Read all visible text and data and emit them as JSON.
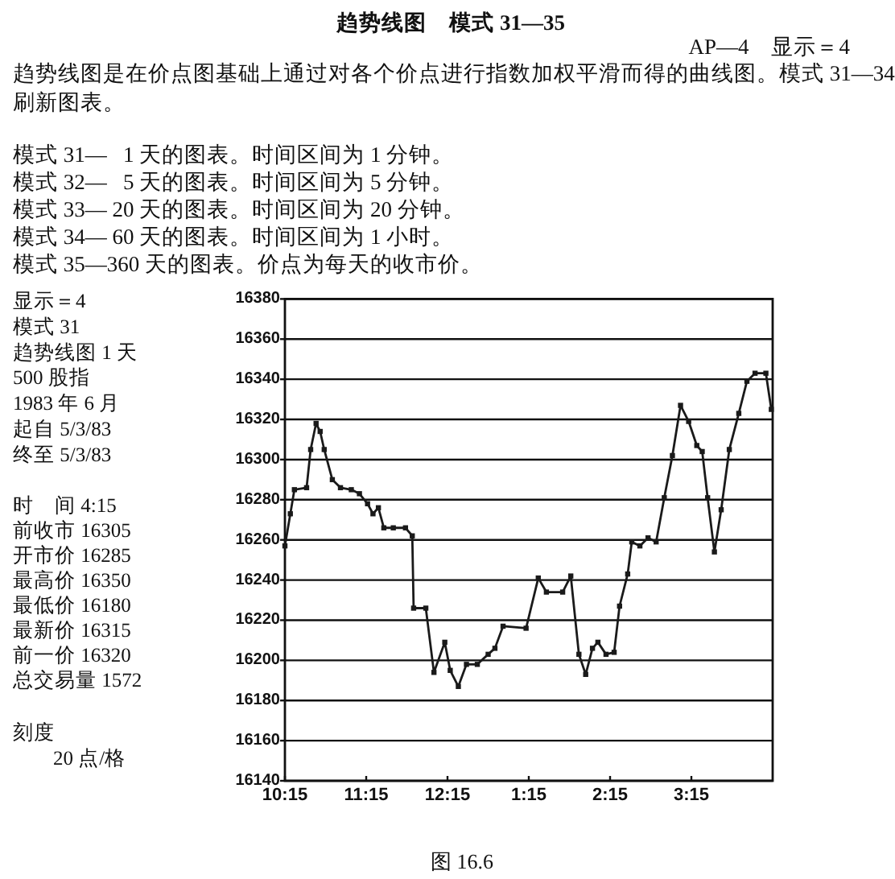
{
  "chart_data": {
    "type": "line",
    "title": "趋势线图　模式 31—35",
    "subtitle": "AP—4　显示＝4",
    "x": [
      "1983-05-03T10:15",
      "1983-05-03T10:19",
      "1983-05-03T10:22",
      "1983-05-03T10:31",
      "1983-05-03T10:34",
      "1983-05-03T10:38",
      "1983-05-03T10:41",
      "1983-05-03T10:44",
      "1983-05-03T10:50",
      "1983-05-03T10:56",
      "1983-05-03T11:04",
      "1983-05-03T11:10",
      "1983-05-03T11:16",
      "1983-05-03T11:20",
      "1983-05-03T11:24",
      "1983-05-03T11:28",
      "1983-05-03T11:35",
      "1983-05-03T11:44",
      "1983-05-03T11:49",
      "1983-05-03T11:50",
      "1983-05-03T11:59",
      "1983-05-03T12:05",
      "1983-05-03T12:13",
      "1983-05-03T12:17",
      "1983-05-03T12:23",
      "1983-05-03T12:29",
      "1983-05-03T12:37",
      "1983-05-03T12:45",
      "1983-05-03T12:50",
      "1983-05-03T12:56",
      "1983-05-03T13:13",
      "1983-05-03T13:22",
      "1983-05-03T13:28",
      "1983-05-03T13:40",
      "1983-05-03T13:46",
      "1983-05-03T13:52",
      "1983-05-03T13:57",
      "1983-05-03T14:02",
      "1983-05-03T14:06",
      "1983-05-03T14:12",
      "1983-05-03T14:18",
      "1983-05-03T14:22",
      "1983-05-03T14:28",
      "1983-05-03T14:31",
      "1983-05-03T14:37",
      "1983-05-03T14:43",
      "1983-05-03T14:49",
      "1983-05-03T14:55",
      "1983-05-03T15:01",
      "1983-05-03T15:07",
      "1983-05-03T15:13",
      "1983-05-03T15:19",
      "1983-05-03T15:23",
      "1983-05-03T15:27",
      "1983-05-03T15:32",
      "1983-05-03T15:37",
      "1983-05-03T15:43",
      "1983-05-03T15:50",
      "1983-05-03T15:56",
      "1983-05-03T16:02",
      "1983-05-03T16:10",
      "1983-05-03T16:14"
    ],
    "series": [
      {
        "color": "#1a1a1a",
        "values": [
          16257,
          16273,
          16285,
          16286,
          16305,
          16318,
          16314,
          16305,
          16290,
          16286,
          16285,
          16283,
          16278,
          16273,
          16276,
          16266,
          16266,
          16266,
          16262,
          16226,
          16226,
          16194,
          16209,
          16195,
          16187,
          16198,
          16198,
          16203,
          16206,
          16217,
          16216,
          16241,
          16234,
          16234,
          16242,
          16203,
          16193,
          16206,
          16209,
          16203,
          16204,
          16227,
          16243,
          16259,
          16257,
          16261,
          16259,
          16281,
          16302,
          16327,
          16319,
          16307,
          16304,
          16281,
          16254,
          16275,
          16305,
          16323,
          16339,
          16343,
          16343,
          16325
        ]
      }
    ],
    "xlim": [
      "1983-05-03T10:15",
      "1983-05-03T16:15"
    ],
    "xticks": [
      {
        "value": "1983-05-03T10:15",
        "label": "10:15"
      },
      {
        "value": "1983-05-03T11:15",
        "label": "11:15"
      },
      {
        "value": "1983-05-03T12:15",
        "label": "12:15"
      },
      {
        "value": "1983-05-03T13:15",
        "label": "1:15"
      },
      {
        "value": "1983-05-03T14:15",
        "label": "2:15"
      },
      {
        "value": "1983-05-03T15:15",
        "label": "3:15"
      }
    ],
    "ylim": [
      16140,
      16380
    ],
    "yticks": [
      16140,
      16160,
      16180,
      16200,
      16220,
      16240,
      16260,
      16280,
      16300,
      16320,
      16340,
      16360,
      16380
    ],
    "grid": "y",
    "marker": "square",
    "line_style": "solid",
    "annotations": [
      "趋势线图是在价点图基础上通过对各个价点进行指数加权平滑而得的曲线图。模式 31—34 刷新图表。",
      "模式 31—   1 天的图表。时间区间为 1 分钟。",
      "模式 32—   5 天的图表。时间区间为 5 分钟。",
      "模式 33— 20 天的图表。时间区间为 20 分钟。",
      "模式 34— 60 天的图表。时间区间为 1 小时。",
      "模式 35—360 天的图表。价点为每天的收市价。",
      "显示＝4",
      "模式 31",
      "趋势线图 1 天",
      "500 股指",
      "1983 年 6 月",
      "起自 5/3/83",
      "终至 5/3/83",
      "时　间 4:15",
      "前收市 16305",
      "开市价 16285",
      "最高价 16350",
      "最低价 16180",
      "最新价 16315",
      "前一价 16320",
      "总交易量 1572",
      "刻度",
      "20 点/格",
      "图 16.6"
    ]
  }
}
